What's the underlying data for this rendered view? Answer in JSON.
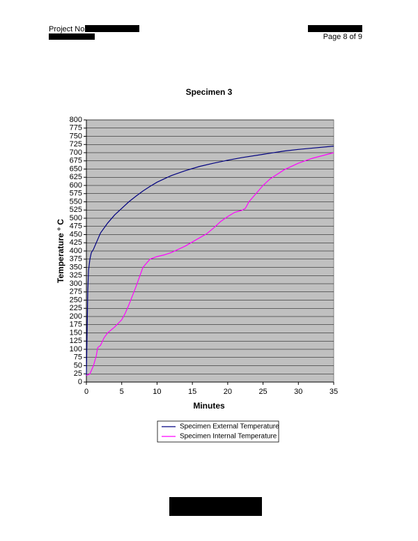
{
  "header": {
    "project_label": "Project No.",
    "page": "Page 8 of 9"
  },
  "chart_data": {
    "type": "line",
    "title": "Specimen 3",
    "xlabel": "Minutes",
    "ylabel": "Temperature  ° C",
    "xlim": [
      0,
      35
    ],
    "xticks": [
      0,
      5,
      10,
      15,
      20,
      25,
      30,
      35
    ],
    "ylim": [
      0,
      800
    ],
    "yticks": [
      0,
      25,
      50,
      75,
      100,
      125,
      150,
      175,
      200,
      225,
      250,
      275,
      300,
      325,
      350,
      375,
      400,
      425,
      450,
      475,
      500,
      525,
      550,
      575,
      600,
      625,
      650,
      675,
      700,
      725,
      750,
      775,
      800
    ],
    "grid": true,
    "legend": "bottom",
    "series": [
      {
        "name": "Specimen External Temperature",
        "color": "#000080",
        "x": [
          0,
          0.1,
          0.2,
          0.3,
          0.5,
          0.7,
          1,
          1.5,
          2,
          2.5,
          3,
          4,
          5,
          6,
          7,
          8,
          9,
          10,
          12,
          14,
          16,
          18,
          20,
          22,
          25,
          28,
          30,
          32,
          35
        ],
        "values": [
          20,
          150,
          280,
          340,
          375,
          395,
          405,
          430,
          455,
          470,
          485,
          510,
          530,
          550,
          567,
          583,
          597,
          610,
          630,
          645,
          658,
          668,
          677,
          685,
          695,
          705,
          710,
          714,
          720
        ]
      },
      {
        "name": "Specimen Internal Temperature",
        "color": "#ff00ff",
        "x": [
          0,
          0.5,
          1,
          1.4,
          1.6,
          2,
          2.5,
          3,
          4,
          5,
          5.5,
          6,
          7,
          8,
          9,
          10,
          11,
          12,
          14,
          16,
          17,
          18,
          19,
          20,
          21,
          22,
          22.5,
          23,
          24,
          25,
          26,
          28,
          30,
          32,
          35
        ],
        "values": [
          20,
          25,
          50,
          80,
          105,
          112,
          135,
          150,
          168,
          190,
          210,
          235,
          290,
          350,
          375,
          383,
          388,
          395,
          415,
          440,
          452,
          470,
          490,
          505,
          518,
          524,
          530,
          550,
          575,
          600,
          620,
          648,
          668,
          683,
          700
        ]
      }
    ]
  }
}
